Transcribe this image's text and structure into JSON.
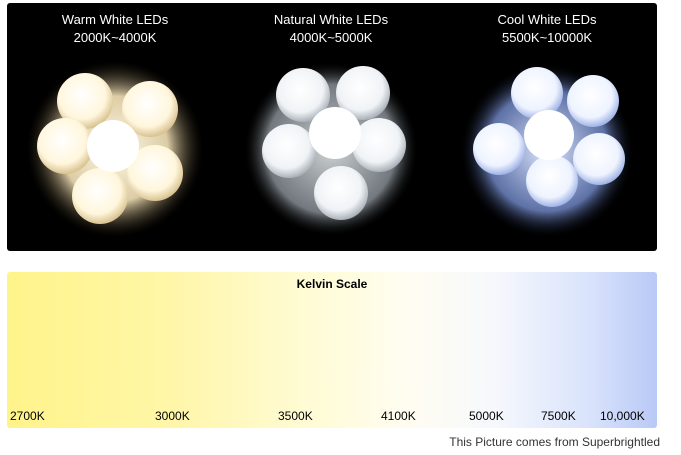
{
  "led_groups": [
    {
      "name": "Warm White LEDs",
      "range": "2000K~4000K",
      "glow_color": "#fff1cc",
      "core_color": "#ffffff",
      "edge_color": "#c9b68a"
    },
    {
      "name": "Natural White LEDs",
      "range": "4000K~5000K",
      "glow_color": "#f2f4f6",
      "core_color": "#ffffff",
      "edge_color": "#9aa1a8"
    },
    {
      "name": "Cool White LEDs",
      "range": "5500K~10000K",
      "glow_color": "#e6eeff",
      "core_color": "#ffffff",
      "edge_color": "#8da4d8"
    }
  ],
  "kelvin_scale": {
    "title": "Kelvin Scale",
    "ticks": [
      "2700K",
      "3000K",
      "3500K",
      "4100K",
      "5000K",
      "7500K",
      "10,000K"
    ],
    "gradient_colors": [
      "#fff48a",
      "#fffdf2",
      "#b9c9f6"
    ]
  },
  "credit": "This Picture comes from Superbrightled"
}
